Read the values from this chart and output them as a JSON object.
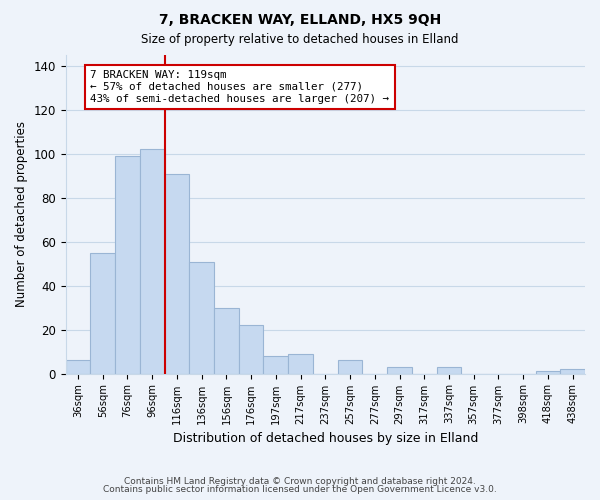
{
  "title": "7, BRACKEN WAY, ELLAND, HX5 9QH",
  "subtitle": "Size of property relative to detached houses in Elland",
  "xlabel": "Distribution of detached houses by size in Elland",
  "ylabel": "Number of detached properties",
  "bar_labels": [
    "36sqm",
    "56sqm",
    "76sqm",
    "96sqm",
    "116sqm",
    "136sqm",
    "156sqm",
    "176sqm",
    "197sqm",
    "217sqm",
    "237sqm",
    "257sqm",
    "277sqm",
    "297sqm",
    "317sqm",
    "337sqm",
    "357sqm",
    "377sqm",
    "398sqm",
    "418sqm",
    "438sqm"
  ],
  "bar_values": [
    6,
    55,
    99,
    102,
    91,
    51,
    30,
    22,
    8,
    9,
    0,
    6,
    0,
    3,
    0,
    3,
    0,
    0,
    0,
    1,
    2
  ],
  "bar_color": "#c6d9f0",
  "bar_edge_color": "#9ab5d4",
  "vline_x": 3.5,
  "vline_color": "#cc0000",
  "annotation_text": "7 BRACKEN WAY: 119sqm\n← 57% of detached houses are smaller (277)\n43% of semi-detached houses are larger (207) →",
  "annotation_box_color": "#ffffff",
  "annotation_box_edge": "#cc0000",
  "ylim": [
    0,
    145
  ],
  "yticks": [
    0,
    20,
    40,
    60,
    80,
    100,
    120,
    140
  ],
  "grid_color": "#c8d8e8",
  "footer_line1": "Contains HM Land Registry data © Crown copyright and database right 2024.",
  "footer_line2": "Contains public sector information licensed under the Open Government Licence v3.0.",
  "background_color": "#eef3fa"
}
